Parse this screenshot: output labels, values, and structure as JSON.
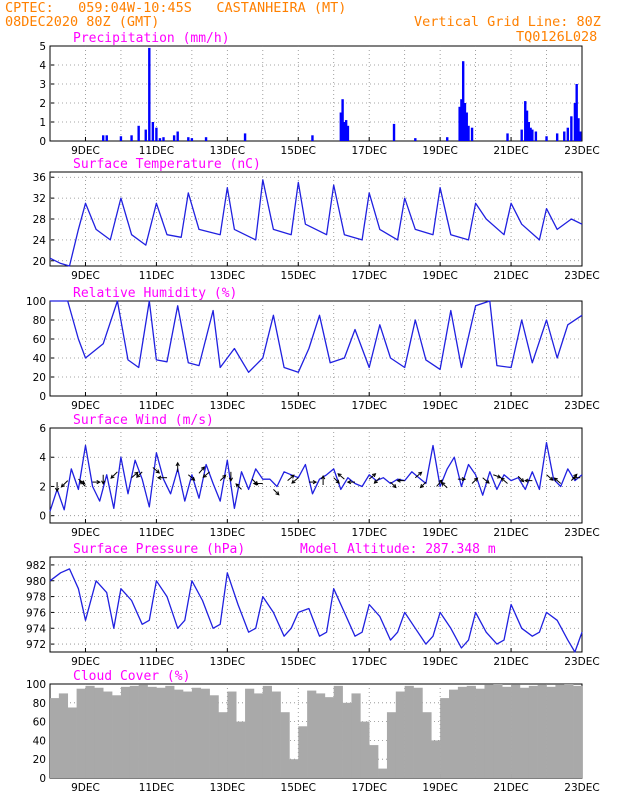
{
  "header": {
    "line1_left": "CPTEC:   059:04W-10:45S   CASTANHEIRA (MT)",
    "line2_left": "08DEC2020 80Z (GMT)",
    "line1_right": "Vertical Grid Line: 80Z",
    "line2_right": "TQ0126L028",
    "color": "#ff8000"
  },
  "colors": {
    "title": "#ff00ff",
    "line": "#2020e0",
    "bar": "#0000ff",
    "cloud": "#a9a9a9"
  },
  "chart_data": [
    {
      "type": "bar",
      "title": "Precipitation (mm/h)",
      "x_labels": [
        "9DEC",
        "11DEC",
        "13DEC",
        "15DEC",
        "17DEC",
        "19DEC",
        "21DEC",
        "23DEC"
      ],
      "ylim": [
        0,
        5
      ],
      "yticks": [
        "0",
        "1",
        "2",
        "3",
        "4",
        "5"
      ],
      "x": [
        9.5,
        9.6,
        10.0,
        10.3,
        10.5,
        10.7,
        10.8,
        10.9,
        11.0,
        11.1,
        11.2,
        11.5,
        11.6,
        11.9,
        12.0,
        12.4,
        13.5,
        15.4,
        16.2,
        16.25,
        16.3,
        16.35,
        16.4,
        17.7,
        18.3,
        19.2,
        19.55,
        19.6,
        19.65,
        19.7,
        19.75,
        19.8,
        19.9,
        20.9,
        21.3,
        21.4,
        21.45,
        21.5,
        21.55,
        21.6,
        21.7,
        22.0,
        22.3,
        22.5,
        22.6,
        22.7,
        22.8,
        22.85,
        22.9,
        22.95
      ],
      "values": [
        0.3,
        0.3,
        0.25,
        0.3,
        0.8,
        0.6,
        4.9,
        1.0,
        0.7,
        0.15,
        0.2,
        0.3,
        0.5,
        0.2,
        0.15,
        0.2,
        0.4,
        0.3,
        1.5,
        2.2,
        1.0,
        1.1,
        0.8,
        0.9,
        0.15,
        0.2,
        1.8,
        2.2,
        4.2,
        2.0,
        1.5,
        0.8,
        0.7,
        0.4,
        0.6,
        2.1,
        1.6,
        1.0,
        0.7,
        0.6,
        0.5,
        0.25,
        0.4,
        0.5,
        0.7,
        1.3,
        2.0,
        3.0,
        1.2,
        0.5
      ]
    },
    {
      "type": "line",
      "title": "Surface Temperature (nC)",
      "x_labels": [
        "9DEC",
        "11DEC",
        "13DEC",
        "15DEC",
        "17DEC",
        "19DEC",
        "21DEC",
        "23DEC"
      ],
      "ylim": [
        19,
        37
      ],
      "yticks": [
        "20",
        "24",
        "28",
        "32",
        "36"
      ],
      "x": [
        8.0,
        8.3,
        8.55,
        8.8,
        9.0,
        9.3,
        9.7,
        10.0,
        10.3,
        10.7,
        11.0,
        11.3,
        11.7,
        11.9,
        12.2,
        12.8,
        13.0,
        13.2,
        13.8,
        14.0,
        14.3,
        14.8,
        15.0,
        15.2,
        15.8,
        16.0,
        16.3,
        16.8,
        17.0,
        17.3,
        17.8,
        18.0,
        18.3,
        18.8,
        19.0,
        19.3,
        19.8,
        20.0,
        20.3,
        20.8,
        21.0,
        21.3,
        21.8,
        22.0,
        22.3,
        22.7,
        23.0
      ],
      "values": [
        20.5,
        19.5,
        19.0,
        26.0,
        31.0,
        26.0,
        24.0,
        32.0,
        25.0,
        23.0,
        31.0,
        25.0,
        24.5,
        33.0,
        26.0,
        25.0,
        34.0,
        26.0,
        24.0,
        35.5,
        26.0,
        25.0,
        35.0,
        27.0,
        25.0,
        34.5,
        25.0,
        24.0,
        33.0,
        26.0,
        24.0,
        32.0,
        26.0,
        25.0,
        34.0,
        25.0,
        24.0,
        31.0,
        28.0,
        25.0,
        31.0,
        27.0,
        24.0,
        30.0,
        26.0,
        28.0,
        27.0
      ]
    },
    {
      "type": "line",
      "title": "Relative Humidity (%)",
      "x_labels": [
        "9DEC",
        "11DEC",
        "13DEC",
        "15DEC",
        "17DEC",
        "19DEC",
        "21DEC",
        "23DEC"
      ],
      "ylim": [
        0,
        100
      ],
      "yticks": [
        "0",
        "20",
        "40",
        "60",
        "80",
        "100"
      ],
      "x": [
        8.0,
        8.5,
        8.8,
        9.0,
        9.5,
        9.9,
        10.2,
        10.5,
        10.8,
        11.0,
        11.3,
        11.6,
        11.9,
        12.2,
        12.6,
        12.8,
        13.2,
        13.6,
        14.0,
        14.3,
        14.6,
        15.0,
        15.3,
        15.6,
        15.9,
        16.3,
        16.6,
        17.0,
        17.3,
        17.6,
        18.0,
        18.3,
        18.6,
        19.0,
        19.3,
        19.6,
        20.0,
        20.4,
        20.6,
        21.0,
        21.3,
        21.6,
        22.0,
        22.3,
        22.6,
        23.0
      ],
      "values": [
        100,
        100,
        60,
        40,
        55,
        100,
        38,
        30,
        100,
        38,
        36,
        95,
        35,
        32,
        90,
        30,
        50,
        25,
        40,
        85,
        30,
        25,
        50,
        85,
        35,
        40,
        70,
        30,
        75,
        40,
        30,
        80,
        38,
        28,
        90,
        30,
        95,
        100,
        32,
        30,
        80,
        35,
        80,
        40,
        75,
        85
      ]
    },
    {
      "type": "line",
      "title": "Surface Wind (m/s)",
      "x_labels": [
        "9DEC",
        "11DEC",
        "13DEC",
        "15DEC",
        "17DEC",
        "19DEC",
        "21DEC",
        "23DEC"
      ],
      "ylim": [
        -0.5,
        6
      ],
      "yticks": [
        "0",
        "2",
        "4",
        "6"
      ],
      "x": [
        8.0,
        8.2,
        8.4,
        8.6,
        8.8,
        9.0,
        9.2,
        9.4,
        9.6,
        9.8,
        10.0,
        10.2,
        10.4,
        10.6,
        10.8,
        11.0,
        11.2,
        11.4,
        11.6,
        11.8,
        12.0,
        12.2,
        12.4,
        12.6,
        12.8,
        13.0,
        13.2,
        13.4,
        13.6,
        13.8,
        14.0,
        14.2,
        14.4,
        14.6,
        14.8,
        15.0,
        15.2,
        15.4,
        15.6,
        15.8,
        16.0,
        16.2,
        16.4,
        16.6,
        16.8,
        17.0,
        17.2,
        17.4,
        17.6,
        17.8,
        18.0,
        18.2,
        18.4,
        18.6,
        18.8,
        19.0,
        19.2,
        19.4,
        19.6,
        19.8,
        20.0,
        20.2,
        20.4,
        20.6,
        20.8,
        21.0,
        21.2,
        21.4,
        21.6,
        21.8,
        22.0,
        22.2,
        22.4,
        22.6,
        22.8,
        23.0
      ],
      "values": [
        0.3,
        1.8,
        0.4,
        3.2,
        1.8,
        4.8,
        2.0,
        1.0,
        2.8,
        0.5,
        4.0,
        1.5,
        3.8,
        2.5,
        0.6,
        4.3,
        2.5,
        1.5,
        3.2,
        1.0,
        2.8,
        1.2,
        3.5,
        2.2,
        1.0,
        3.8,
        0.5,
        3.0,
        1.8,
        3.2,
        2.5,
        2.5,
        2.0,
        3.0,
        2.8,
        2.6,
        3.5,
        1.5,
        2.5,
        2.8,
        3.2,
        1.8,
        2.6,
        2.2,
        2.0,
        2.8,
        2.4,
        2.6,
        2.2,
        2.5,
        2.4,
        3.0,
        2.6,
        2.2,
        4.8,
        2.0,
        3.2,
        4.0,
        2.0,
        3.5,
        2.8,
        1.4,
        3.0,
        1.8,
        2.8,
        2.4,
        2.6,
        1.8,
        3.0,
        1.8,
        5.0,
        2.5,
        2.0,
        3.2,
        2.4,
        2.8
      ],
      "vectors": [
        [
          8.2,
          2.3,
          0,
          -1
        ],
        [
          8.5,
          2.4,
          -0.7,
          -0.7
        ],
        [
          8.8,
          2.5,
          0.7,
          -0.5
        ],
        [
          9.0,
          2.0,
          -0.6,
          0.6
        ],
        [
          9.2,
          2.3,
          0.8,
          0
        ],
        [
          9.5,
          2.8,
          0,
          -1
        ],
        [
          9.9,
          3.0,
          -0.7,
          -0.7
        ],
        [
          10.3,
          2.6,
          0.7,
          0.6
        ],
        [
          10.6,
          3.0,
          -0.6,
          -0.6
        ],
        [
          10.9,
          3.3,
          0.7,
          -0.6
        ],
        [
          11.3,
          2.6,
          -1,
          0
        ],
        [
          11.6,
          3.0,
          0,
          1
        ],
        [
          11.9,
          2.8,
          0.7,
          -0.6
        ],
        [
          12.2,
          2.9,
          0.6,
          0.7
        ],
        [
          12.5,
          3.0,
          -0.7,
          -0.6
        ],
        [
          12.8,
          2.4,
          0.6,
          0.6
        ],
        [
          13.1,
          3.0,
          0,
          -1
        ],
        [
          13.4,
          1.8,
          -0.6,
          0.6
        ],
        [
          13.7,
          2.5,
          0.6,
          -0.6
        ],
        [
          14.0,
          2.2,
          -1,
          0
        ],
        [
          14.3,
          1.8,
          0.6,
          -0.6
        ],
        [
          14.7,
          2.4,
          0.7,
          0.6
        ],
        [
          15.0,
          2.6,
          -0.7,
          -0.6
        ],
        [
          15.3,
          2.3,
          0.8,
          0
        ],
        [
          15.7,
          2.1,
          0,
          1
        ],
        [
          16.0,
          2.6,
          0.6,
          -0.6
        ],
        [
          16.3,
          2.5,
          -0.7,
          0.6
        ],
        [
          16.6,
          2.3,
          -0.8,
          0
        ],
        [
          17.0,
          2.5,
          0.7,
          0.6
        ],
        [
          17.3,
          2.6,
          -0.6,
          -0.6
        ],
        [
          17.6,
          2.3,
          0.6,
          -0.6
        ],
        [
          18.0,
          2.4,
          -0.8,
          0
        ],
        [
          18.3,
          2.6,
          0.7,
          0.6
        ],
        [
          18.6,
          2.3,
          -0.6,
          -0.6
        ],
        [
          18.9,
          2.0,
          0.6,
          0.7
        ],
        [
          19.2,
          1.9,
          -0.6,
          0.6
        ],
        [
          19.5,
          2.5,
          0.8,
          0
        ],
        [
          19.9,
          2.2,
          0.6,
          0.6
        ],
        [
          20.2,
          2.6,
          0.7,
          -0.6
        ],
        [
          20.5,
          2.8,
          0.8,
          -0.3
        ],
        [
          20.9,
          2.2,
          -0.7,
          0.6
        ],
        [
          21.2,
          2.7,
          0.6,
          -0.6
        ],
        [
          21.6,
          2.4,
          -0.8,
          0
        ],
        [
          22.0,
          2.8,
          0.7,
          -0.6
        ],
        [
          22.4,
          2.2,
          -0.7,
          0.6
        ],
        [
          22.7,
          2.4,
          0.6,
          0.7
        ],
        [
          22.95,
          2.6,
          -0.8,
          0
        ]
      ]
    },
    {
      "type": "line",
      "title": "Surface Pressure (hPa)",
      "annotation": "Model Altitude: 287.348 m",
      "x_labels": [
        "9DEC",
        "11DEC",
        "13DEC",
        "15DEC",
        "17DEC",
        "19DEC",
        "21DEC",
        "23DEC"
      ],
      "ylim": [
        971,
        983
      ],
      "yticks": [
        "972",
        "974",
        "976",
        "978",
        "980",
        "982"
      ],
      "x": [
        8.0,
        8.3,
        8.55,
        8.8,
        9.0,
        9.3,
        9.6,
        9.8,
        10.0,
        10.3,
        10.6,
        10.8,
        11.0,
        11.3,
        11.6,
        11.8,
        12.0,
        12.3,
        12.6,
        12.8,
        13.0,
        13.3,
        13.6,
        13.8,
        14.0,
        14.3,
        14.6,
        14.8,
        15.0,
        15.3,
        15.6,
        15.8,
        16.0,
        16.3,
        16.6,
        16.8,
        17.0,
        17.3,
        17.6,
        17.8,
        18.0,
        18.3,
        18.6,
        18.8,
        19.0,
        19.3,
        19.6,
        19.8,
        20.0,
        20.3,
        20.6,
        20.8,
        21.0,
        21.3,
        21.6,
        21.8,
        22.0,
        22.3,
        22.6,
        22.8,
        23.0
      ],
      "values": [
        980.0,
        981.0,
        981.5,
        979.0,
        975.0,
        980.0,
        978.5,
        974.0,
        979.0,
        977.5,
        974.5,
        975.0,
        980.0,
        978.0,
        974.0,
        975.0,
        980.0,
        977.5,
        974.0,
        974.5,
        981.0,
        977.0,
        973.5,
        974.0,
        978.0,
        976.0,
        973.0,
        974.0,
        976.0,
        976.5,
        973.0,
        973.5,
        979.0,
        976.0,
        973.0,
        973.5,
        977.0,
        975.5,
        972.5,
        973.5,
        976.0,
        974.0,
        972.0,
        973.0,
        976.0,
        974.0,
        971.5,
        972.5,
        976.0,
        973.5,
        972.0,
        972.5,
        977.0,
        974.0,
        973.0,
        973.5,
        976.0,
        975.0,
        972.5,
        971.0,
        973.5
      ]
    },
    {
      "type": "bar",
      "title": "Cloud Cover (%)",
      "x_labels": [
        "9DEC",
        "11DEC",
        "13DEC",
        "15DEC",
        "17DEC",
        "19DEC",
        "21DEC",
        "23DEC"
      ],
      "ylim": [
        0,
        100
      ],
      "yticks": [
        "0",
        "20",
        "40",
        "60",
        "80",
        "100"
      ],
      "x": [
        8.0,
        8.25,
        8.5,
        8.75,
        9.0,
        9.25,
        9.5,
        9.75,
        10.0,
        10.25,
        10.5,
        10.75,
        11.0,
        11.25,
        11.5,
        11.75,
        12.0,
        12.25,
        12.5,
        12.75,
        13.0,
        13.25,
        13.5,
        13.75,
        14.0,
        14.25,
        14.5,
        14.75,
        15.0,
        15.25,
        15.5,
        15.75,
        16.0,
        16.25,
        16.5,
        16.75,
        17.0,
        17.25,
        17.5,
        17.75,
        18.0,
        18.25,
        18.5,
        18.75,
        19.0,
        19.25,
        19.5,
        19.75,
        20.0,
        20.25,
        20.5,
        20.75,
        21.0,
        21.25,
        21.5,
        21.75,
        22.0,
        22.25,
        22.5,
        22.75
      ],
      "values": [
        85,
        90,
        75,
        95,
        98,
        96,
        92,
        88,
        97,
        98,
        99,
        97,
        96,
        98,
        94,
        92,
        96,
        95,
        88,
        70,
        92,
        60,
        95,
        90,
        98,
        92,
        70,
        20,
        55,
        93,
        90,
        86,
        98,
        80,
        90,
        60,
        35,
        10,
        70,
        92,
        98,
        96,
        70,
        40,
        85,
        94,
        97,
        98,
        95,
        99,
        100,
        97,
        99,
        96,
        98,
        99,
        97,
        99,
        100,
        98
      ]
    }
  ]
}
